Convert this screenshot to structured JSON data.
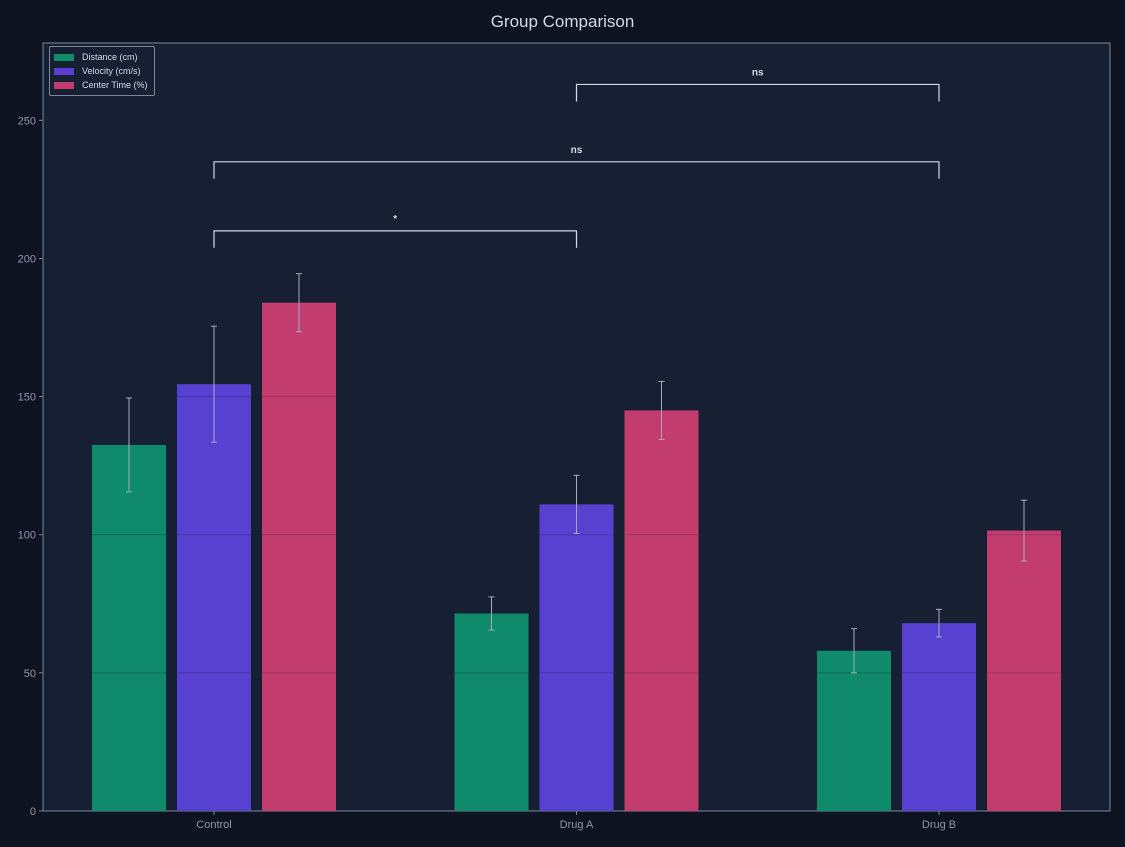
{
  "chart_data": {
    "type": "bar",
    "title": "Group Comparison",
    "xlabel": "",
    "ylabel": "",
    "categories": [
      "Control",
      "Drug A",
      "Drug B"
    ],
    "series": [
      {
        "name": "Distance (cm)",
        "color": "#0f8a6a",
        "values": [
          132.5,
          71.5,
          58
        ],
        "errors": [
          17,
          6,
          8
        ]
      },
      {
        "name": "Velocity (cm/s)",
        "color": "#5840d0",
        "values": [
          154.5,
          111,
          68
        ],
        "errors": [
          21,
          10.5,
          5
        ]
      },
      {
        "name": "Center Time (%)",
        "color": "#c23d6e",
        "values": [
          184,
          145,
          101.5
        ],
        "errors": [
          10.5,
          10.5,
          11
        ]
      }
    ],
    "ylim": [
      0,
      278
    ],
    "yticks": [
      0,
      50,
      100,
      150,
      200,
      250
    ],
    "grid": false,
    "legend_position": "top-left",
    "significance": [
      {
        "from": "Control",
        "to": "Drug A",
        "y": 210,
        "label": "*"
      },
      {
        "from": "Control",
        "to": "Drug B",
        "y": 235,
        "label": "ns"
      },
      {
        "from": "Drug A",
        "to": "Drug B",
        "y": 263,
        "label": "ns"
      }
    ]
  },
  "colors": {
    "page_background": "#0d1321",
    "plot_background": "#172033",
    "axis": "#7c879b",
    "tick_text": "#8e98ad",
    "annotation": "#d3d9e6",
    "error_bar": "#a4acbc",
    "grid_line": "#000000"
  }
}
